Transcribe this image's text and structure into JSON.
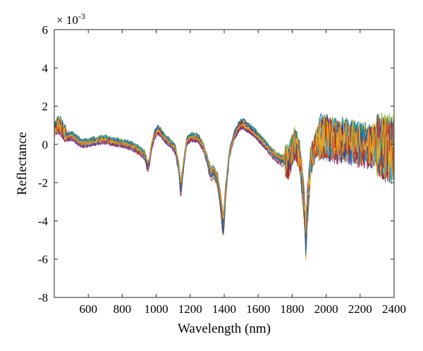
{
  "chart_data": {
    "type": "line",
    "xlabel": "Wavelength (nm)",
    "ylabel": "Reflectance",
    "y_exponent_label": "× 10",
    "y_exponent_power": "-3",
    "xlim": [
      400,
      2400
    ],
    "ylim": [
      -8,
      6
    ],
    "xticks": [
      600,
      800,
      1000,
      1200,
      1400,
      1600,
      1800,
      2000,
      2200,
      2400
    ],
    "yticks": [
      -8,
      -6,
      -4,
      -2,
      0,
      2,
      4,
      6
    ],
    "grid": false,
    "legend": "none",
    "series_colors": [
      "#0072BD",
      "#D95319",
      "#EDB120",
      "#7E2F8E",
      "#77AC30",
      "#4DBEEE",
      "#A2142F"
    ],
    "base_profile": {
      "x": [
        400,
        420,
        440,
        460,
        480,
        500,
        520,
        540,
        560,
        600,
        650,
        700,
        750,
        800,
        850,
        900,
        930,
        950,
        960,
        970,
        990,
        1010,
        1030,
        1050,
        1080,
        1110,
        1130,
        1145,
        1160,
        1180,
        1210,
        1250,
        1280,
        1300,
        1320,
        1340,
        1360,
        1380,
        1395,
        1410,
        1430,
        1460,
        1490,
        1510,
        1540,
        1580,
        1620,
        1660,
        1700,
        1740,
        1780,
        1800,
        1820,
        1840,
        1855,
        1870,
        1880,
        1890,
        1910,
        1950,
        2000,
        2050,
        2100,
        2150,
        2200,
        2250,
        2300,
        2350,
        2400
      ],
      "y": [
        0.8,
        1.1,
        0.9,
        0.6,
        0.4,
        0.45,
        0.35,
        0.2,
        0.05,
        0.1,
        0.2,
        0.25,
        0.15,
        0.05,
        -0.05,
        -0.3,
        -0.5,
        -1.1,
        -0.9,
        -0.2,
        0.5,
        0.8,
        0.6,
        0.3,
        0.1,
        -0.2,
        -1.0,
        -2.3,
        -1.1,
        0.2,
        0.4,
        0.3,
        -0.2,
        -0.8,
        -1.5,
        -1.4,
        -1.8,
        -3.0,
        -4.3,
        -2.2,
        -0.5,
        0.5,
        1.0,
        1.1,
        0.9,
        0.6,
        0.2,
        -0.2,
        -0.6,
        -0.8,
        -0.9,
        -0.3,
        0.1,
        -0.5,
        -1.5,
        -3.2,
        -4.8,
        -3.2,
        -0.8,
        0.3,
        0.4,
        0.2,
        0.2,
        0.1,
        0.0,
        -0.1,
        0.0,
        -0.2,
        -0.3
      ]
    },
    "curve_count": 24
  }
}
